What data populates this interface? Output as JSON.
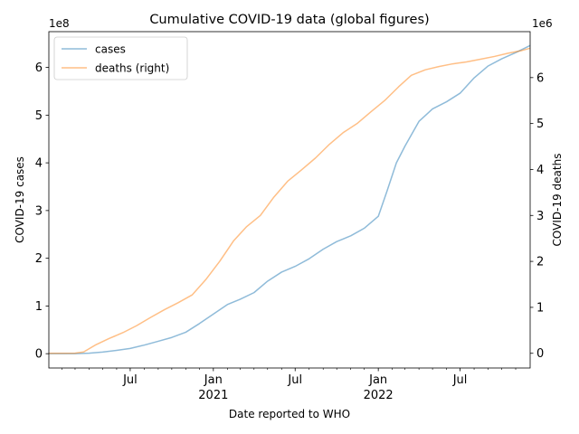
{
  "chart_data": {
    "type": "line",
    "title": "Cumulative COVID-19 data (global figures)",
    "xlabel": "Date reported to WHO",
    "ylabel_left": "COVID-19 cases",
    "ylabel_right": "COVID-19 deaths",
    "left_scale_label": "1e8",
    "right_scale_label": "1e6",
    "xlim": [
      "2020-01-03",
      "2022-12-03"
    ],
    "ylim_left": [
      -30000000,
      675000000
    ],
    "ylim_right": [
      -320000,
      7000000
    ],
    "left_ticks": [
      {
        "value": 0,
        "label": "0"
      },
      {
        "value": 100000000,
        "label": "1"
      },
      {
        "value": 200000000,
        "label": "2"
      },
      {
        "value": 300000000,
        "label": "3"
      },
      {
        "value": 400000000,
        "label": "4"
      },
      {
        "value": 500000000,
        "label": "5"
      },
      {
        "value": 600000000,
        "label": "6"
      }
    ],
    "right_ticks": [
      {
        "value": 0,
        "label": "0"
      },
      {
        "value": 1000000,
        "label": "1"
      },
      {
        "value": 2000000,
        "label": "2"
      },
      {
        "value": 3000000,
        "label": "3"
      },
      {
        "value": 4000000,
        "label": "4"
      },
      {
        "value": 5000000,
        "label": "5"
      },
      {
        "value": 6000000,
        "label": "6"
      }
    ],
    "x_major_ticks": [
      {
        "date": "2020-07-01",
        "label": "Jul",
        "sublabel": ""
      },
      {
        "date": "2021-01-01",
        "label": "Jan",
        "sublabel": "2021"
      },
      {
        "date": "2021-07-01",
        "label": "Jul",
        "sublabel": ""
      },
      {
        "date": "2022-01-01",
        "label": "Jan",
        "sublabel": "2022"
      },
      {
        "date": "2022-07-01",
        "label": "Jul",
        "sublabel": ""
      }
    ],
    "x_minor_ticks": [
      "2020-02-01",
      "2020-03-01",
      "2020-04-01",
      "2020-05-01",
      "2020-06-01",
      "2020-08-01",
      "2020-09-01",
      "2020-10-01",
      "2020-11-01",
      "2020-12-01",
      "2021-02-01",
      "2021-03-01",
      "2021-04-01",
      "2021-05-01",
      "2021-06-01",
      "2021-08-01",
      "2021-09-01",
      "2021-10-01",
      "2021-11-01",
      "2021-12-01",
      "2022-02-01",
      "2022-03-01",
      "2022-04-01",
      "2022-05-01",
      "2022-06-01",
      "2022-08-01",
      "2022-09-01",
      "2022-10-01",
      "2022-11-01"
    ],
    "legend_position": "upper-left",
    "grid": false,
    "series": [
      {
        "name": "cases",
        "axis": "left",
        "color": "#1f77b4",
        "points": [
          [
            "2020-01-03",
            0
          ],
          [
            "2020-03-01",
            100000
          ],
          [
            "2020-04-01",
            1000000
          ],
          [
            "2020-05-01",
            3500000
          ],
          [
            "2020-06-01",
            7000000
          ],
          [
            "2020-07-01",
            11000000
          ],
          [
            "2020-08-01",
            18000000
          ],
          [
            "2020-09-01",
            26000000
          ],
          [
            "2020-10-01",
            34000000
          ],
          [
            "2020-11-01",
            45000000
          ],
          [
            "2020-12-01",
            63000000
          ],
          [
            "2021-01-01",
            83000000
          ],
          [
            "2021-02-01",
            103000000
          ],
          [
            "2021-03-01",
            114000000
          ],
          [
            "2021-04-01",
            128000000
          ],
          [
            "2021-05-01",
            152000000
          ],
          [
            "2021-06-01",
            171000000
          ],
          [
            "2021-07-01",
            183000000
          ],
          [
            "2021-08-01",
            199000000
          ],
          [
            "2021-09-01",
            219000000
          ],
          [
            "2021-10-01",
            235000000
          ],
          [
            "2021-11-01",
            247000000
          ],
          [
            "2021-12-01",
            263000000
          ],
          [
            "2022-01-01",
            288000000
          ],
          [
            "2022-01-20",
            340000000
          ],
          [
            "2022-02-10",
            400000000
          ],
          [
            "2022-03-01",
            435000000
          ],
          [
            "2022-04-01",
            487000000
          ],
          [
            "2022-05-01",
            513000000
          ],
          [
            "2022-06-01",
            528000000
          ],
          [
            "2022-07-01",
            546000000
          ],
          [
            "2022-08-01",
            578000000
          ],
          [
            "2022-09-01",
            603000000
          ],
          [
            "2022-10-01",
            618000000
          ],
          [
            "2022-11-01",
            631000000
          ],
          [
            "2022-12-03",
            646000000
          ]
        ]
      },
      {
        "name": "deaths (right)",
        "axis": "right",
        "color": "#ff7f0e",
        "points": [
          [
            "2020-01-03",
            0
          ],
          [
            "2020-03-01",
            3000
          ],
          [
            "2020-03-20",
            30000
          ],
          [
            "2020-04-15",
            180000
          ],
          [
            "2020-05-15",
            320000
          ],
          [
            "2020-06-15",
            450000
          ],
          [
            "2020-07-15",
            600000
          ],
          [
            "2020-08-15",
            780000
          ],
          [
            "2020-09-15",
            950000
          ],
          [
            "2020-10-15",
            1100000
          ],
          [
            "2020-11-15",
            1270000
          ],
          [
            "2020-12-15",
            1600000
          ],
          [
            "2021-01-15",
            2000000
          ],
          [
            "2021-02-15",
            2450000
          ],
          [
            "2021-03-15",
            2750000
          ],
          [
            "2021-04-15",
            3000000
          ],
          [
            "2021-05-15",
            3400000
          ],
          [
            "2021-06-15",
            3750000
          ],
          [
            "2021-07-15",
            3990000
          ],
          [
            "2021-08-15",
            4250000
          ],
          [
            "2021-09-15",
            4550000
          ],
          [
            "2021-10-15",
            4800000
          ],
          [
            "2021-11-15",
            5000000
          ],
          [
            "2021-12-15",
            5250000
          ],
          [
            "2022-01-15",
            5500000
          ],
          [
            "2022-02-15",
            5800000
          ],
          [
            "2022-03-15",
            6050000
          ],
          [
            "2022-04-15",
            6170000
          ],
          [
            "2022-05-15",
            6240000
          ],
          [
            "2022-06-15",
            6300000
          ],
          [
            "2022-07-15",
            6340000
          ],
          [
            "2022-08-15",
            6400000
          ],
          [
            "2022-09-15",
            6460000
          ],
          [
            "2022-10-15",
            6530000
          ],
          [
            "2022-11-15",
            6590000
          ],
          [
            "2022-12-03",
            6640000
          ]
        ]
      }
    ]
  }
}
